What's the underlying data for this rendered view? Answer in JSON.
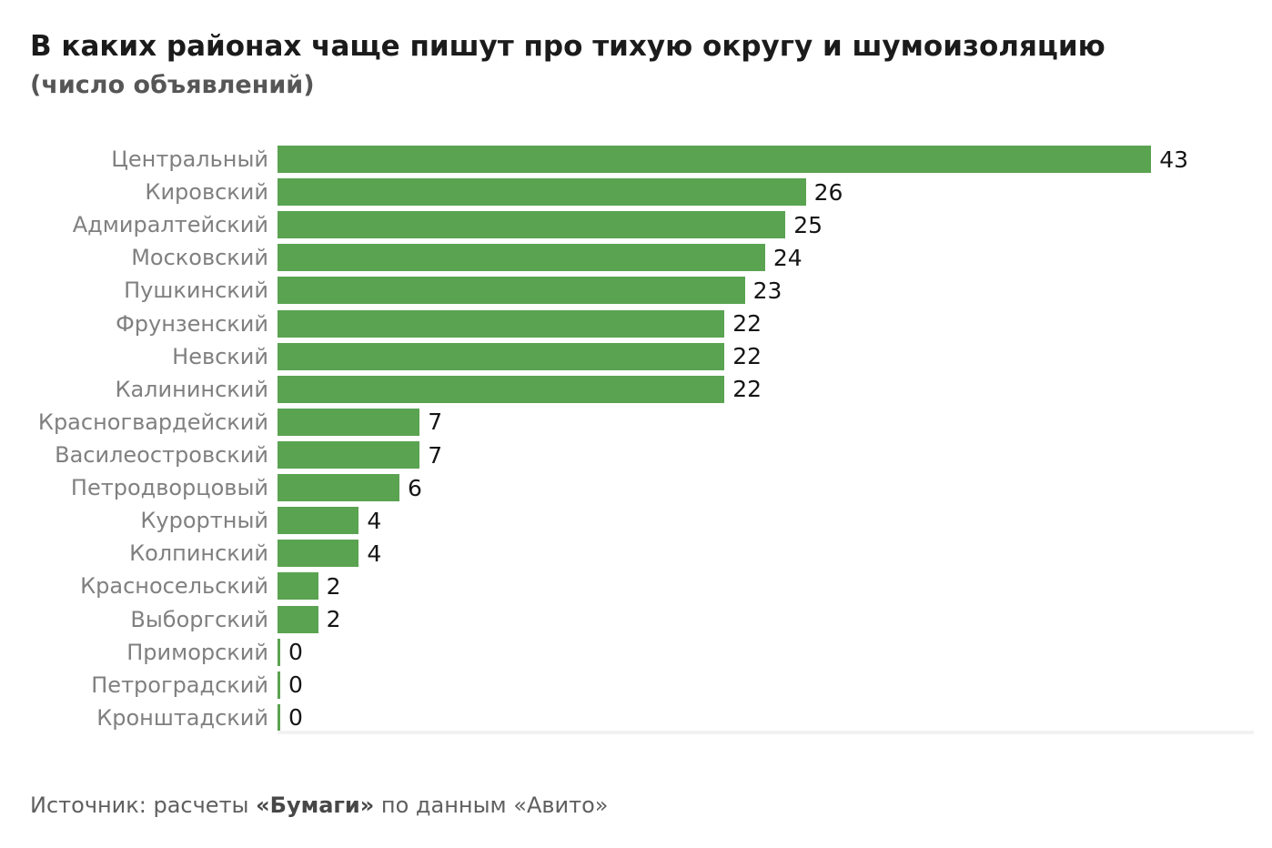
{
  "title": "В каких районах чаще пишут про тихую округу и шумоизоляцию",
  "subtitle": "(число объявлений)",
  "source": {
    "prefix": "Источник: расчеты ",
    "bold_part": "«Бумаги»",
    "suffix": " по данным «Авито»"
  },
  "chart_data": {
    "type": "bar",
    "orientation": "horizontal",
    "title": "В каких районах чаще пишут про тихую округу и шумоизоляцию (число объявлений)",
    "categories": [
      "Центральный",
      "Кировский",
      "Адмиралтейский",
      "Московский",
      "Пушкинский",
      "Фрунзенский",
      "Невский",
      "Калининский",
      "Красногвардейский",
      "Василеостровский",
      "Петродворцовый",
      "Курортный",
      "Колпинский",
      "Красносельский",
      "Выборгский",
      "Приморский",
      "Петроградский",
      "Кронштадский"
    ],
    "values": [
      43,
      26,
      25,
      24,
      23,
      22,
      22,
      22,
      7,
      7,
      6,
      4,
      4,
      2,
      2,
      0,
      0,
      0
    ],
    "value_labels_shown": true,
    "xlim": [
      0,
      48
    ],
    "grid": false,
    "legend": "none",
    "bar_color": "#5aa351",
    "category_label_color": "#808080",
    "value_label_color": "#151515",
    "axis_line_color": "#f2f2f2"
  }
}
